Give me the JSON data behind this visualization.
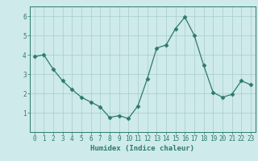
{
  "x": [
    0,
    1,
    2,
    3,
    4,
    5,
    6,
    7,
    8,
    9,
    10,
    11,
    12,
    13,
    14,
    15,
    16,
    17,
    18,
    19,
    20,
    21,
    22,
    23
  ],
  "y": [
    3.9,
    4.0,
    3.25,
    2.65,
    2.2,
    1.8,
    1.55,
    1.3,
    0.75,
    0.85,
    0.7,
    1.35,
    2.75,
    4.35,
    4.5,
    5.35,
    5.95,
    5.0,
    3.45,
    2.05,
    1.8,
    1.95,
    2.65,
    2.45
  ],
  "line_color": "#2d7a6e",
  "marker": "D",
  "marker_size": 2.5,
  "bg_color": "#ceeaea",
  "grid_color": "#a8cccc",
  "xlabel": "Humidex (Indice chaleur)",
  "ylabel": "",
  "xlim": [
    -0.5,
    23.5
  ],
  "ylim": [
    0,
    6.5
  ],
  "yticks": [
    1,
    2,
    3,
    4,
    5,
    6
  ],
  "xticks": [
    0,
    1,
    2,
    3,
    4,
    5,
    6,
    7,
    8,
    9,
    10,
    11,
    12,
    13,
    14,
    15,
    16,
    17,
    18,
    19,
    20,
    21,
    22,
    23
  ],
  "tick_fontsize": 5.5,
  "xlabel_fontsize": 6.5
}
